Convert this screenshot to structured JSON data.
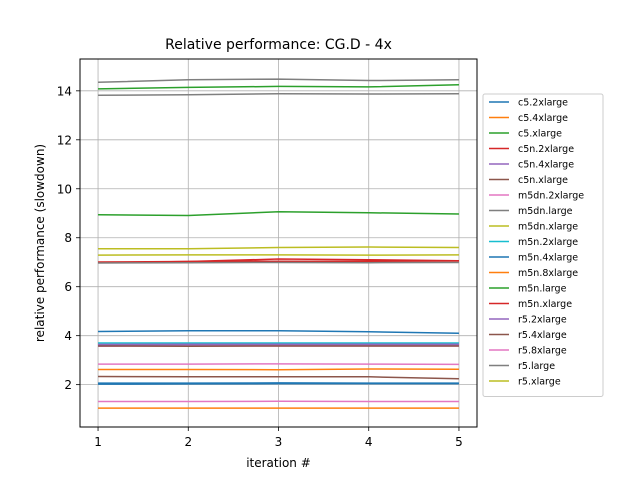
{
  "chart_data": {
    "type": "line",
    "title": "Relative performance: CG.D - 4x",
    "xlabel": "iteration #",
    "ylabel": "relative performance (slowdown)",
    "x": [
      1,
      2,
      3,
      4,
      5
    ],
    "xticks": [
      1,
      2,
      3,
      4,
      5
    ],
    "yticks": [
      2,
      4,
      6,
      8,
      10,
      12,
      14
    ],
    "xlim": [
      0.8,
      5.2
    ],
    "ylim": [
      0.27,
      15.3
    ],
    "grid": true,
    "legend_position": "right",
    "series": [
      {
        "name": "c5.2xlarge",
        "color": "#1f77b4",
        "values": [
          3.62,
          3.63,
          3.63,
          3.62,
          3.62
        ]
      },
      {
        "name": "c5.4xlarge",
        "color": "#ff7f0e",
        "values": [
          2.62,
          2.62,
          2.61,
          2.64,
          2.63
        ]
      },
      {
        "name": "c5.xlarge",
        "color": "#2ca02c",
        "values": [
          14.08,
          14.14,
          14.18,
          14.16,
          14.25
        ]
      },
      {
        "name": "c5n.2xlarge",
        "color": "#d62728",
        "values": [
          6.98,
          7.03,
          7.13,
          7.1,
          7.06
        ]
      },
      {
        "name": "c5n.4xlarge",
        "color": "#9467bd",
        "values": [
          3.64,
          3.64,
          3.64,
          3.64,
          3.64
        ]
      },
      {
        "name": "c5n.xlarge",
        "color": "#8c564b",
        "values": [
          2.33,
          2.32,
          2.32,
          2.32,
          2.24
        ]
      },
      {
        "name": "m5dn.2xlarge",
        "color": "#e377c2",
        "values": [
          3.57,
          3.58,
          3.58,
          3.58,
          3.58
        ]
      },
      {
        "name": "m5dn.large",
        "color": "#7f7f7f",
        "values": [
          13.82,
          13.84,
          13.88,
          13.87,
          13.88
        ]
      },
      {
        "name": "m5dn.xlarge",
        "color": "#bcbd22",
        "values": [
          7.29,
          7.3,
          7.3,
          7.29,
          7.3
        ]
      },
      {
        "name": "m5n.2xlarge",
        "color": "#17becf",
        "values": [
          3.7,
          3.7,
          3.7,
          3.7,
          3.7
        ]
      },
      {
        "name": "m5n.4xlarge",
        "color": "#1f77b4",
        "values": [
          2.06,
          2.06,
          2.07,
          2.06,
          2.06
        ]
      },
      {
        "name": "m5n.8xlarge",
        "color": "#ff7f0e",
        "values": [
          1.04,
          1.04,
          1.04,
          1.04,
          1.04
        ]
      },
      {
        "name": "m5n.large",
        "color": "#2ca02c",
        "values": [
          8.94,
          8.91,
          9.06,
          9.02,
          8.97
        ]
      },
      {
        "name": "m5n.xlarge",
        "color": "#d62728",
        "values": [
          7.01,
          7.03,
          7.04,
          7.04,
          7.05
        ]
      },
      {
        "name": "r5.2xlarge",
        "color": "#9467bd",
        "values": [
          3.64,
          3.65,
          3.65,
          3.65,
          3.65
        ]
      },
      {
        "name": "r5.4xlarge",
        "color": "#8c564b",
        "values": [
          3.58,
          3.57,
          3.58,
          3.58,
          3.58
        ]
      },
      {
        "name": "r5.8xlarge",
        "color": "#e377c2",
        "values": [
          1.31,
          1.31,
          1.32,
          1.31,
          1.31
        ]
      },
      {
        "name": "r5.large",
        "color": "#7f7f7f",
        "values": [
          14.35,
          14.45,
          14.48,
          14.42,
          14.45
        ]
      },
      {
        "name": "r5.xlarge",
        "color": "#bcbd22",
        "values": [
          7.55,
          7.55,
          7.6,
          7.62,
          7.6
        ]
      },
      {
        "name": "",
        "color": "#1f77b4",
        "values": [
          4.17,
          4.2,
          4.2,
          4.16,
          4.1
        ]
      },
      {
        "name": "",
        "color": "#1f77b4",
        "values": [
          2.02,
          2.03,
          2.04,
          2.04,
          2.04
        ]
      },
      {
        "name": "",
        "color": "#e377c2",
        "values": [
          2.84,
          2.84,
          2.85,
          2.84,
          2.83
        ]
      },
      {
        "name": "",
        "color": "#7f7f7f",
        "values": [
          6.97,
          6.98,
          6.99,
          6.98,
          6.99
        ]
      }
    ]
  }
}
